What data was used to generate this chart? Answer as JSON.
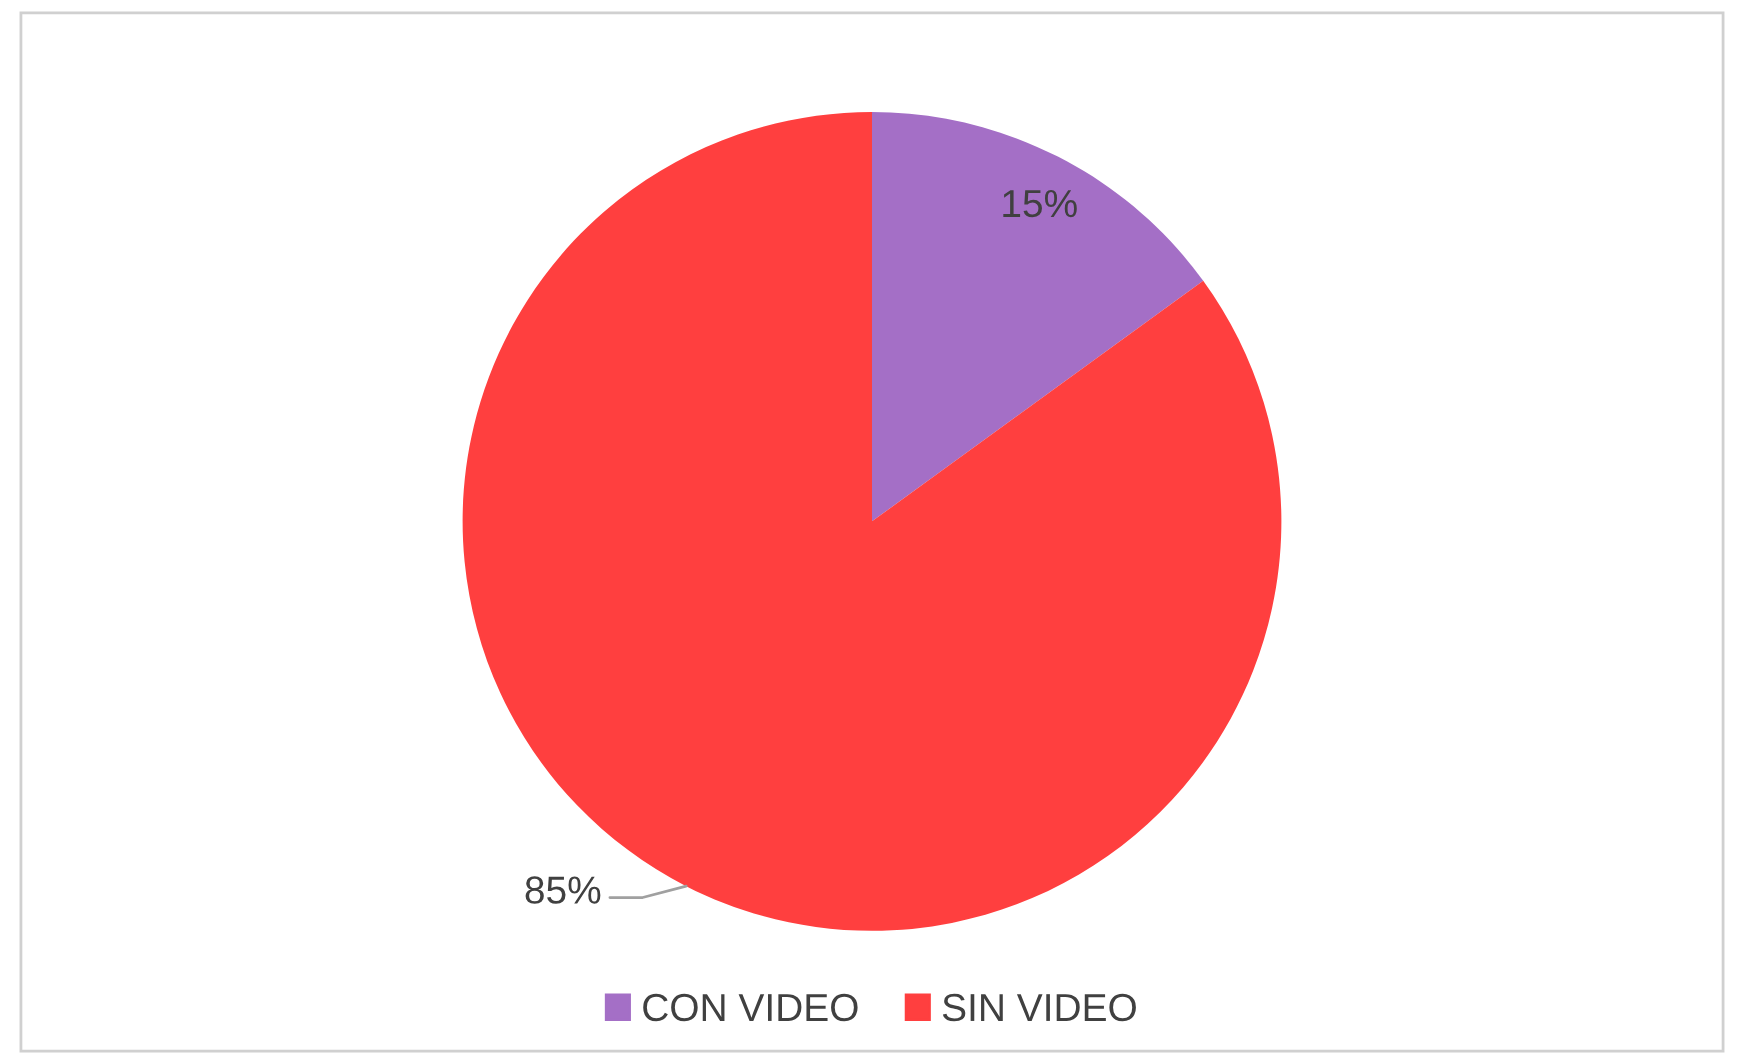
{
  "chart_data": {
    "type": "pie",
    "categories": [
      "CON VIDEO",
      "SIN VIDEO"
    ],
    "values": [
      15,
      85
    ],
    "colors": [
      "#a46fc6",
      "#ff3f3f"
    ],
    "value_labels": [
      "15%",
      "85%"
    ],
    "legend": "bottom"
  }
}
